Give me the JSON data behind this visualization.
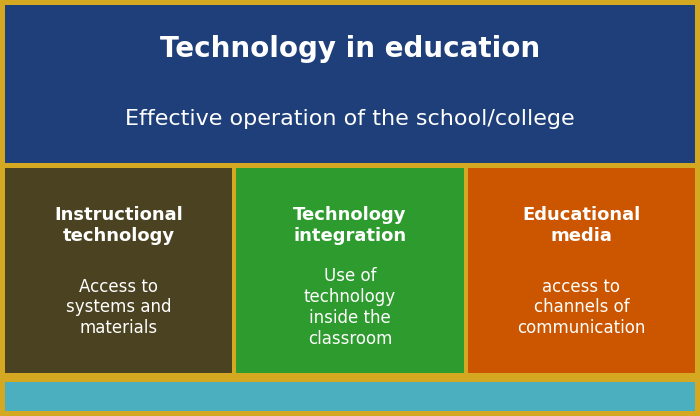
{
  "title": "Technology in education",
  "subtitle": "Effective operation of the school/college",
  "header_bg": "#1F3F7A",
  "footer_bg": "#4BAFC0",
  "border_color": "#D4A820",
  "columns": [
    {
      "heading": "Instructional\ntechnology",
      "body": "Access to\nsystems and\nmaterials",
      "bg_color": "#4A4220"
    },
    {
      "heading": "Technology\nintegration",
      "body": "Use of\ntechnology\ninside the\nclassroom",
      "bg_color": "#2E9B2E"
    },
    {
      "heading": "Educational\nmedia",
      "body": "access to\nchannels of\ncommunication",
      "bg_color": "#CC5500"
    }
  ],
  "text_color": "#FFFFFF",
  "title_fontsize": 20,
  "subtitle_fontsize": 16,
  "heading_fontsize": 13,
  "body_fontsize": 12,
  "fig_width": 7.0,
  "fig_height": 4.16,
  "dpi": 100
}
